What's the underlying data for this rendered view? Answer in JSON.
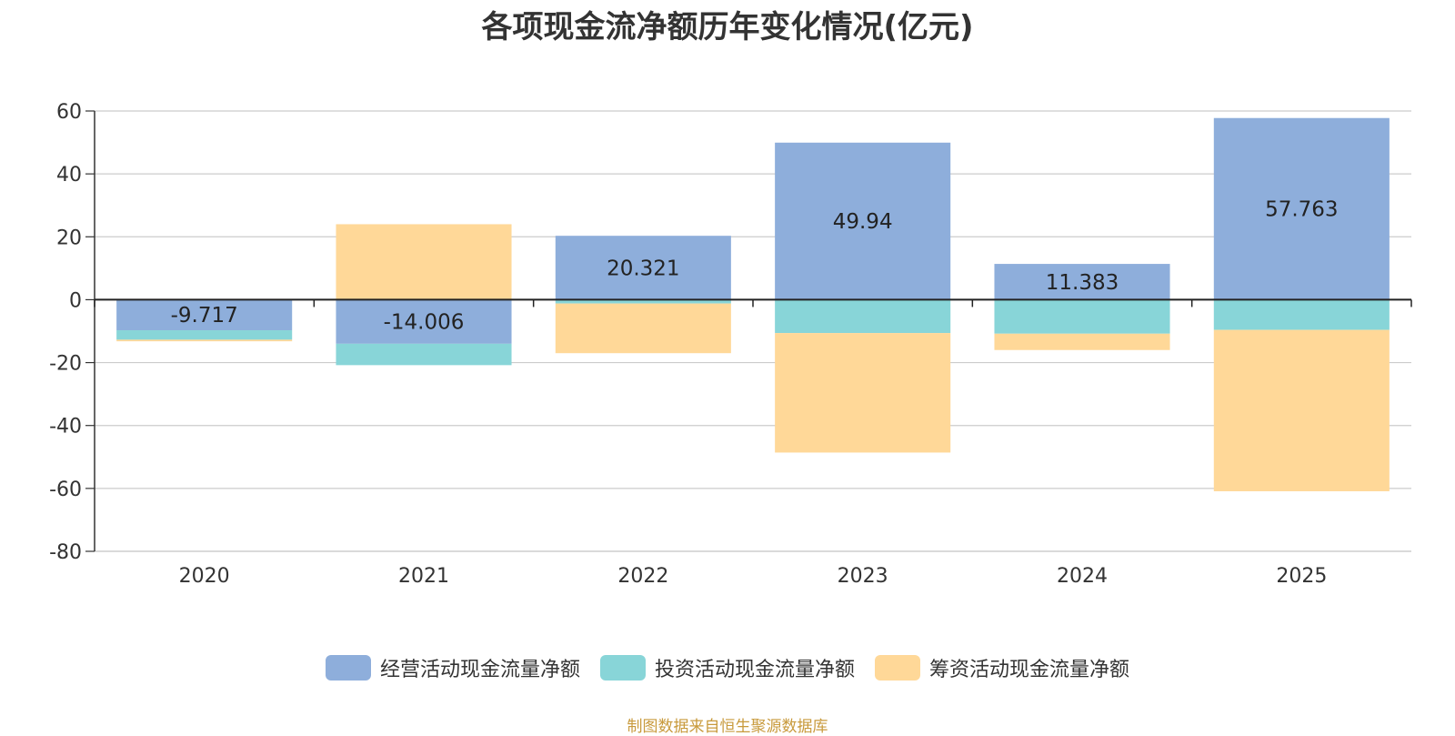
{
  "chart_data": {
    "type": "bar",
    "stacked": true,
    "title": "各项现金流净额历年变化情况(亿元)",
    "categories": [
      "2020",
      "2021",
      "2022",
      "2023",
      "2024",
      "2025"
    ],
    "series": [
      {
        "name": "经营活动现金流量净额",
        "color": "#8eaedb",
        "values": [
          -9.717,
          -14.006,
          20.321,
          49.94,
          11.383,
          57.763
        ],
        "labels": [
          "-9.717",
          "-14.006",
          "20.321",
          "49.94",
          "11.383",
          "57.763"
        ]
      },
      {
        "name": "投资活动现金流量净额",
        "color": "#88d5d8",
        "values": [
          -3.0,
          -6.8,
          -1.2,
          -10.6,
          -10.8,
          -9.6
        ]
      },
      {
        "name": "筹资活动现金流量净额",
        "color": "#ffd898",
        "values": [
          -0.5,
          24.0,
          -15.8,
          -38.0,
          -5.2,
          -51.3
        ]
      }
    ],
    "yticks": [
      "60",
      "40",
      "20",
      "0",
      "-20",
      "-40",
      "-60",
      "-80"
    ],
    "ylim": [
      -80,
      60
    ],
    "grid": true,
    "legend": "bottom"
  },
  "source_note": "制图数据来自恒生聚源数据库"
}
